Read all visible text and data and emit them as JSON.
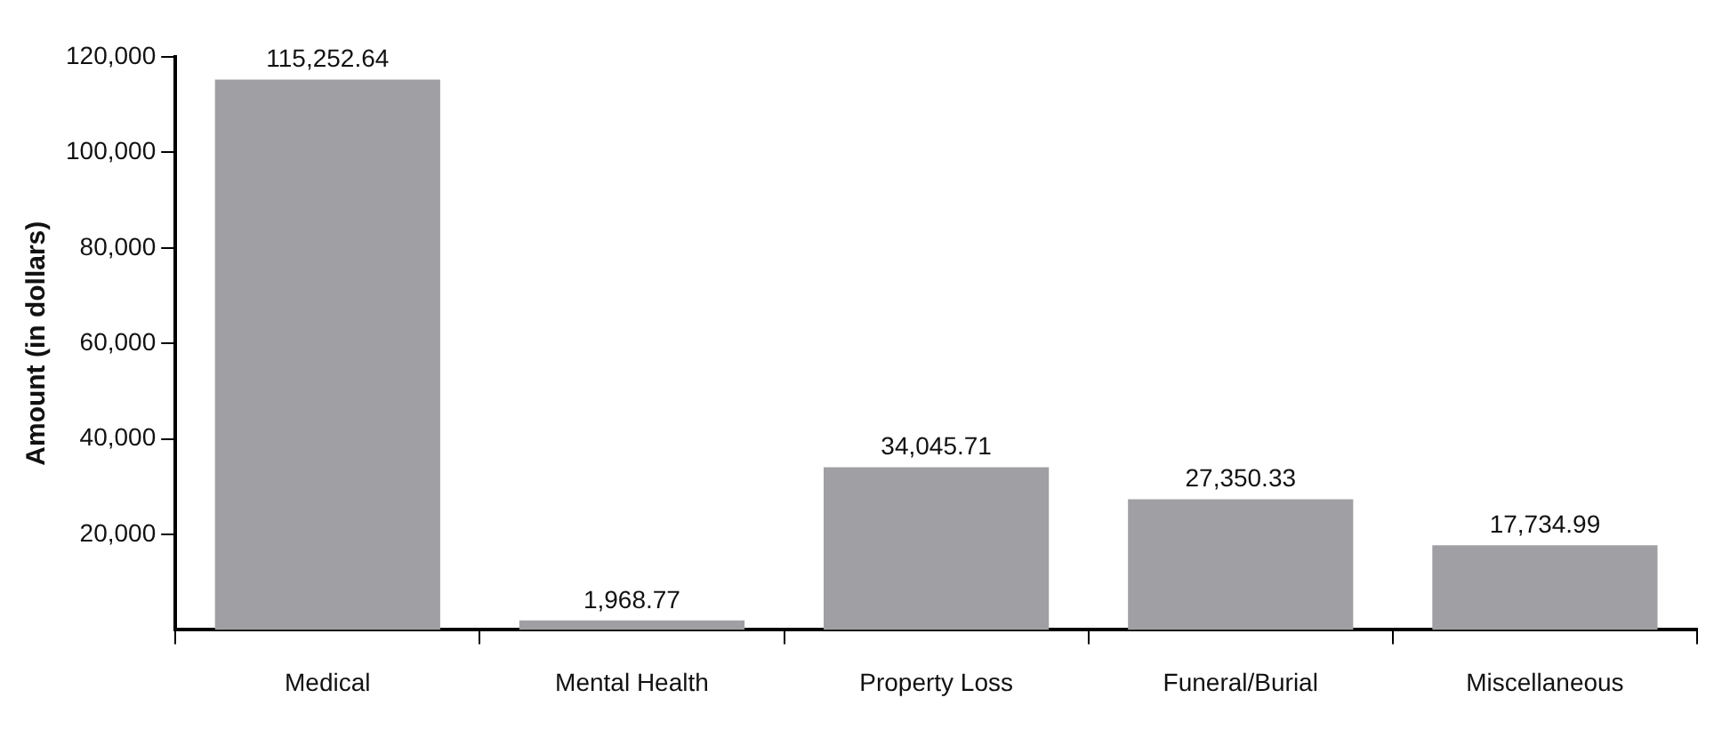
{
  "chart_data": {
    "type": "bar",
    "ylabel": "Amount (in dollars)",
    "categories": [
      "Medical",
      "Mental Health",
      "Property Loss",
      "Funeral/Burial",
      "Miscellaneous"
    ],
    "values": [
      115252.64,
      1968.77,
      34045.71,
      27350.33,
      17734.99
    ],
    "value_labels": [
      "115,252.64",
      "1,968.77",
      "34,045.71",
      "27,350.33",
      "17,734.99"
    ],
    "color": "#a0a0a4",
    "ylim": [
      0,
      120000
    ],
    "yticks": [
      {
        "value": 20000,
        "label": "20,000"
      },
      {
        "value": 40000,
        "label": "40,000"
      },
      {
        "value": 60000,
        "label": "60,000"
      },
      {
        "value": 80000,
        "label": "80,000"
      },
      {
        "value": 100000,
        "label": "100,000"
      },
      {
        "value": 120000,
        "label": "120,000"
      }
    ],
    "grid": false,
    "legend": false
  }
}
